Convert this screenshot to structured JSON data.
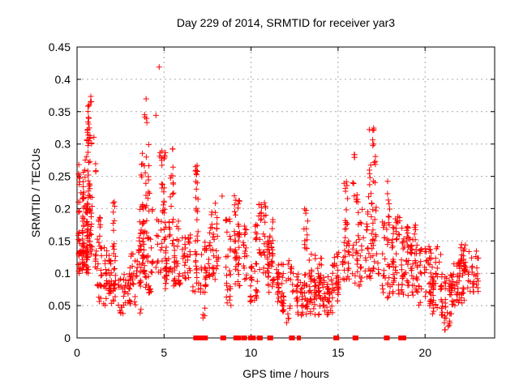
{
  "chart": {
    "title": "Day 229 of 2014, SRMTID for receiver yar3",
    "xlabel": "GPS time / hours",
    "ylabel": "SRMTID / TECUs"
  },
  "chart_data": {
    "type": "scatter",
    "title": "Day 229 of 2014, SRMTID for receiver yar3",
    "xlabel": "GPS time / hours",
    "ylabel": "SRMTID / TECUs",
    "xlim": [
      0,
      24
    ],
    "ylim": [
      0,
      0.45
    ],
    "xticks": [
      0,
      5,
      10,
      15,
      20
    ],
    "yticks": [
      0,
      0.05,
      0.1,
      0.15,
      0.2,
      0.25,
      0.3,
      0.35,
      0.4,
      0.45
    ],
    "grid": true,
    "grid_style": "dashed",
    "grid_color": "#a9a9a9",
    "marker": "+",
    "marker_color": "#ff0000",
    "frame_color": "#000000",
    "max_point": [
      4.7,
      0.417
    ],
    "data_extent_hours": [
      0,
      23.1
    ],
    "point_clusters": [
      [
        0.02,
        0.9,
        0.13,
        0.22,
        90
      ],
      [
        0.02,
        0.7,
        0.1,
        0.135,
        40
      ],
      [
        0.05,
        0.8,
        0.22,
        0.28,
        28
      ],
      [
        0.5,
        0.8,
        0.28,
        0.325,
        12
      ],
      [
        0.55,
        0.75,
        0.33,
        0.362,
        8
      ],
      [
        0.75,
        0.85,
        0.365,
        0.385,
        3
      ],
      [
        0.6,
        1.2,
        0.298,
        0.315,
        6
      ],
      [
        1.0,
        1.15,
        0.25,
        0.27,
        3
      ],
      [
        1.0,
        2.3,
        0.08,
        0.14,
        60
      ],
      [
        1.2,
        2.3,
        0.05,
        0.085,
        25
      ],
      [
        2.0,
        2.2,
        0.14,
        0.218,
        10
      ],
      [
        1.1,
        1.45,
        0.14,
        0.19,
        10
      ],
      [
        2.3,
        3.4,
        0.05,
        0.1,
        40
      ],
      [
        2.4,
        2.7,
        0.035,
        0.05,
        6
      ],
      [
        3.0,
        3.5,
        0.09,
        0.13,
        15
      ],
      [
        3.6,
        3.7,
        0.037,
        0.045,
        2
      ],
      [
        3.5,
        4.4,
        0.1,
        0.2,
        60
      ],
      [
        3.6,
        4.25,
        0.2,
        0.3,
        25
      ],
      [
        3.85,
        4.05,
        0.332,
        0.372,
        5
      ],
      [
        4.5,
        4.6,
        0.34,
        0.346,
        1
      ],
      [
        4.68,
        4.73,
        0.415,
        0.419,
        1
      ],
      [
        3.5,
        4.3,
        0.07,
        0.1,
        20
      ],
      [
        4.5,
        5.9,
        0.1,
        0.185,
        70
      ],
      [
        4.7,
        5.2,
        0.255,
        0.3,
        10
      ],
      [
        4.8,
        5.1,
        0.19,
        0.255,
        12
      ],
      [
        5.3,
        5.6,
        0.2,
        0.295,
        12
      ],
      [
        5.5,
        6.0,
        0.08,
        0.1,
        15
      ],
      [
        5.0,
        5.2,
        0.075,
        0.1,
        8
      ],
      [
        6.0,
        6.6,
        0.09,
        0.16,
        30
      ],
      [
        6.75,
        7.0,
        0.1,
        0.272,
        30
      ],
      [
        6.6,
        7.5,
        0.07,
        0.1,
        20
      ],
      [
        7.0,
        7.5,
        0.1,
        0.155,
        15
      ],
      [
        7.2,
        7.4,
        0.03,
        0.055,
        4
      ],
      [
        7.5,
        8.2,
        0.09,
        0.17,
        35
      ],
      [
        7.6,
        8.1,
        0.17,
        0.21,
        8
      ],
      [
        8.3,
        8.4,
        0.215,
        0.22,
        1
      ],
      [
        8.5,
        8.9,
        0.05,
        0.19,
        30
      ],
      [
        9.0,
        9.4,
        0.12,
        0.22,
        35
      ],
      [
        9.0,
        9.4,
        0.08,
        0.12,
        10
      ],
      [
        9.5,
        9.8,
        0.09,
        0.175,
        18
      ],
      [
        9.9,
        10.4,
        0.055,
        0.12,
        25
      ],
      [
        10.2,
        10.4,
        0.15,
        0.185,
        8
      ],
      [
        10.4,
        10.9,
        0.1,
        0.21,
        30
      ],
      [
        10.9,
        11.3,
        0.095,
        0.15,
        30
      ],
      [
        11.0,
        11.3,
        0.15,
        0.185,
        6
      ],
      [
        10.9,
        11.4,
        0.065,
        0.095,
        10
      ],
      [
        11.4,
        12.5,
        0.055,
        0.12,
        45
      ],
      [
        11.7,
        12.3,
        0.04,
        0.055,
        10
      ],
      [
        12.0,
        12.2,
        0.02,
        0.04,
        4
      ],
      [
        12.5,
        15.1,
        0.055,
        0.1,
        130
      ],
      [
        12.6,
        15.0,
        0.035,
        0.055,
        35
      ],
      [
        13.0,
        13.3,
        0.13,
        0.2,
        14
      ],
      [
        13.3,
        14.2,
        0.1,
        0.13,
        12
      ],
      [
        14.6,
        15.1,
        0.1,
        0.135,
        10
      ],
      [
        15.2,
        15.7,
        0.09,
        0.155,
        25
      ],
      [
        15.3,
        15.6,
        0.155,
        0.245,
        14
      ],
      [
        15.85,
        16.05,
        0.278,
        0.29,
        4
      ],
      [
        15.8,
        16.2,
        0.21,
        0.245,
        8
      ],
      [
        15.7,
        16.4,
        0.08,
        0.15,
        25
      ],
      [
        16.1,
        16.5,
        0.15,
        0.2,
        8
      ],
      [
        16.7,
        17.1,
        0.3,
        0.33,
        5
      ],
      [
        16.7,
        17.2,
        0.22,
        0.3,
        14
      ],
      [
        16.6,
        17.3,
        0.13,
        0.22,
        30
      ],
      [
        16.5,
        17.4,
        0.09,
        0.13,
        20
      ],
      [
        17.8,
        18.0,
        0.185,
        0.255,
        7
      ],
      [
        17.5,
        18.5,
        0.1,
        0.185,
        40
      ],
      [
        17.5,
        18.6,
        0.06,
        0.1,
        25
      ],
      [
        18.3,
        18.6,
        0.15,
        0.19,
        8
      ],
      [
        18.6,
        19.6,
        0.1,
        0.18,
        55
      ],
      [
        18.6,
        19.7,
        0.065,
        0.1,
        30
      ],
      [
        19.6,
        20.4,
        0.05,
        0.145,
        35
      ],
      [
        20.3,
        21.6,
        0.035,
        0.1,
        70
      ],
      [
        20.0,
        21.0,
        0.1,
        0.15,
        14
      ],
      [
        21.0,
        21.5,
        0.012,
        0.035,
        10
      ],
      [
        21.5,
        22.3,
        0.05,
        0.12,
        45
      ],
      [
        21.9,
        22.4,
        0.1,
        0.145,
        25
      ],
      [
        22.4,
        23.1,
        0.07,
        0.135,
        30
      ]
    ],
    "zero_line_marks_hours": [
      6.8,
      6.9,
      7.05,
      7.12,
      7.3,
      7.4,
      8.35,
      8.45,
      9.1,
      9.2,
      9.3,
      9.55,
      9.65,
      9.95,
      10.05,
      10.15,
      10.45,
      10.55,
      11.05,
      11.15,
      12.3,
      12.4,
      12.75,
      14.85,
      14.95,
      15.95,
      16.05,
      17.75,
      17.85,
      18.58,
      18.66,
      18.74,
      18.8
    ]
  }
}
